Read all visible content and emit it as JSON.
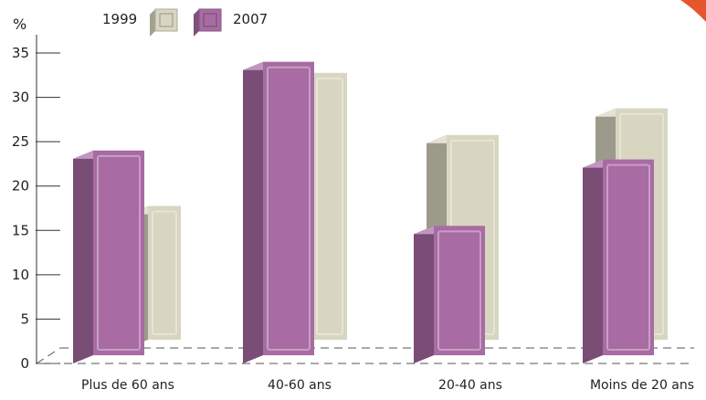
{
  "chart_data": {
    "type": "bar",
    "ylabel": "%",
    "ylim": [
      0,
      35
    ],
    "yticks": [
      0,
      5,
      10,
      15,
      20,
      25,
      30,
      35
    ],
    "categories": [
      "Plus de 60 ans",
      "40-60 ans",
      "20-40 ans",
      "Moins de 20 ans"
    ],
    "series": [
      {
        "name": "1999",
        "values": [
          16,
          31,
          24,
          27
        ],
        "color": "#d8d6c0"
      },
      {
        "name": "2007",
        "values": [
          24,
          34,
          15.5,
          23
        ],
        "color": "#a86ba3"
      }
    ],
    "legend_position": "top-left",
    "grid": false,
    "style": "3d-bars"
  },
  "decor": {
    "corner_accent_color": "#e4572e"
  }
}
